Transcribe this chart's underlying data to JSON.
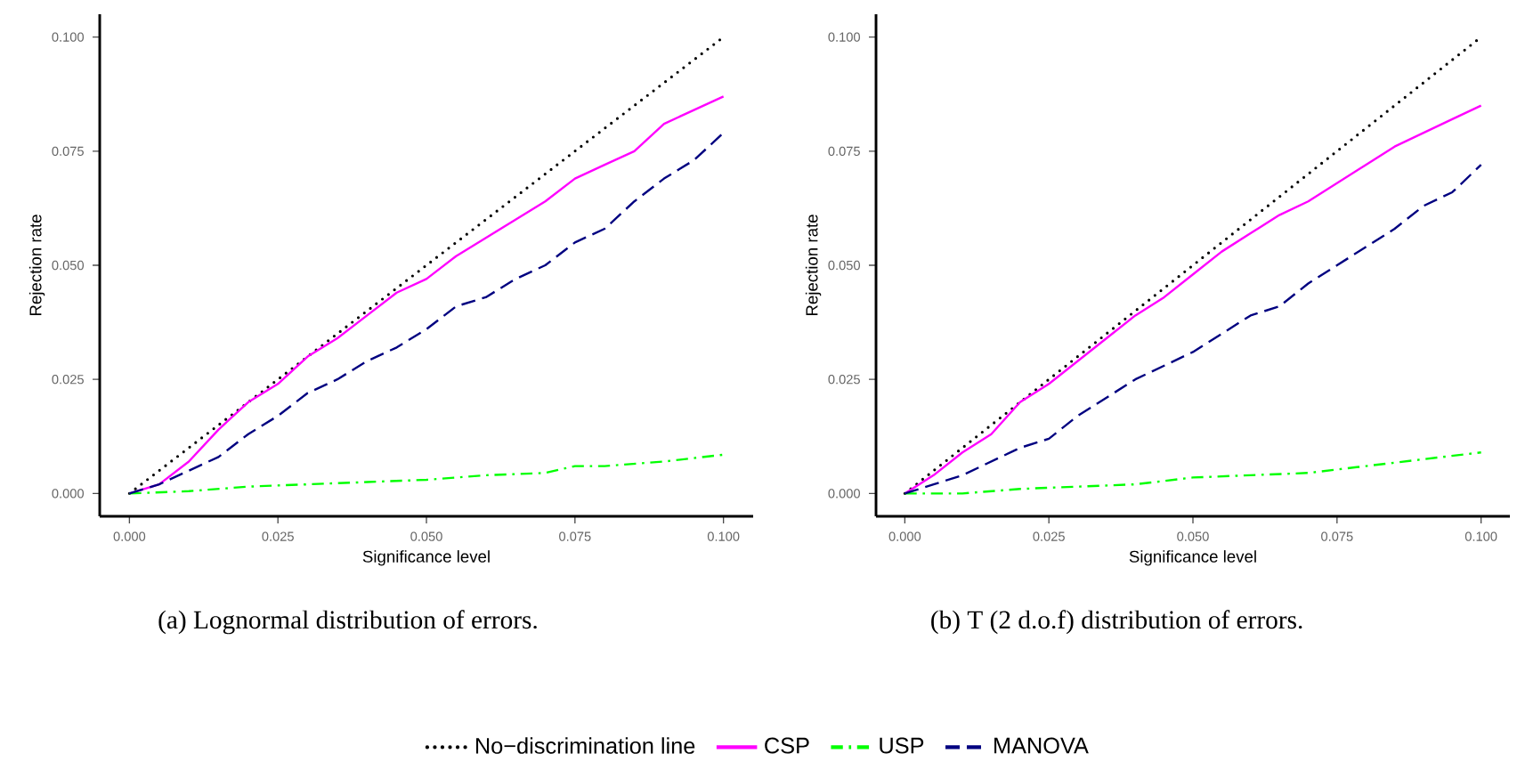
{
  "chart_data": [
    {
      "type": "line",
      "xlabel": "Significance level",
      "ylabel": "Rejection rate",
      "annotations": [
        "(a) Lognormal distribution of errors."
      ],
      "xlim": [
        -0.005,
        0.105
      ],
      "ylim": [
        -0.005,
        0.105
      ],
      "xticks": [
        {
          "value": 0,
          "label": "0.000"
        },
        {
          "value": 0.025,
          "label": "0.025"
        },
        {
          "value": 0.05,
          "label": "0.050"
        },
        {
          "value": 0.075,
          "label": "0.075"
        },
        {
          "value": 0.1,
          "label": "0.100"
        }
      ],
      "yticks": [
        {
          "value": 0,
          "label": "0.000"
        },
        {
          "value": 0.025,
          "label": "0.025"
        },
        {
          "value": 0.05,
          "label": "0.050"
        },
        {
          "value": 0.075,
          "label": "0.075"
        },
        {
          "value": 0.1,
          "label": "0.100"
        }
      ],
      "grid": false,
      "legend": false,
      "series": [
        {
          "color": "#000000",
          "line_style": "dotted",
          "x": [
            0,
            0.1
          ],
          "values": [
            0,
            0.1
          ]
        },
        {
          "color": "#ff00ff",
          "line_style": "solid",
          "x": [
            0,
            0.005,
            0.01,
            0.015,
            0.02,
            0.025,
            0.03,
            0.035,
            0.04,
            0.045,
            0.05,
            0.055,
            0.06,
            0.065,
            0.07,
            0.075,
            0.08,
            0.085,
            0.09,
            0.095,
            0.1
          ],
          "values": [
            0,
            0.002,
            0.007,
            0.014,
            0.02,
            0.024,
            0.03,
            0.034,
            0.039,
            0.044,
            0.047,
            0.052,
            0.056,
            0.06,
            0.064,
            0.069,
            0.072,
            0.075,
            0.081,
            0.084,
            0.087
          ]
        },
        {
          "color": "#00ff00",
          "line_style": "dashdot",
          "x": [
            0,
            0.01,
            0.02,
            0.03,
            0.04,
            0.05,
            0.06,
            0.07,
            0.075,
            0.08,
            0.09,
            0.1
          ],
          "values": [
            0,
            0.0005,
            0.0015,
            0.002,
            0.0025,
            0.003,
            0.004,
            0.0045,
            0.006,
            0.006,
            0.007,
            0.0085
          ]
        },
        {
          "color": "#000080",
          "line_style": "dashed",
          "x": [
            0,
            0.005,
            0.01,
            0.015,
            0.02,
            0.025,
            0.03,
            0.035,
            0.04,
            0.045,
            0.05,
            0.055,
            0.06,
            0.065,
            0.07,
            0.075,
            0.08,
            0.085,
            0.09,
            0.095,
            0.1
          ],
          "values": [
            0,
            0.002,
            0.005,
            0.008,
            0.013,
            0.017,
            0.022,
            0.025,
            0.029,
            0.032,
            0.036,
            0.041,
            0.043,
            0.047,
            0.05,
            0.055,
            0.058,
            0.064,
            0.069,
            0.073,
            0.079
          ]
        }
      ]
    },
    {
      "type": "line",
      "xlabel": "Significance level",
      "ylabel": "Rejection rate",
      "annotations": [
        "(b) T (2 d.o.f) distribution of errors."
      ],
      "xlim": [
        -0.005,
        0.105
      ],
      "ylim": [
        -0.005,
        0.105
      ],
      "xticks": [
        {
          "value": 0,
          "label": "0.000"
        },
        {
          "value": 0.025,
          "label": "0.025"
        },
        {
          "value": 0.05,
          "label": "0.050"
        },
        {
          "value": 0.075,
          "label": "0.075"
        },
        {
          "value": 0.1,
          "label": "0.100"
        }
      ],
      "yticks": [
        {
          "value": 0,
          "label": "0.000"
        },
        {
          "value": 0.025,
          "label": "0.025"
        },
        {
          "value": 0.05,
          "label": "0.050"
        },
        {
          "value": 0.075,
          "label": "0.075"
        },
        {
          "value": 0.1,
          "label": "0.100"
        }
      ],
      "grid": false,
      "legend": "bottom",
      "series": [
        {
          "name": "No−discrimination line",
          "color": "#000000",
          "line_style": "dotted",
          "x": [
            0,
            0.1
          ],
          "values": [
            0,
            0.1
          ]
        },
        {
          "name": "CSP",
          "color": "#ff00ff",
          "line_style": "solid",
          "x": [
            0,
            0.005,
            0.01,
            0.015,
            0.02,
            0.025,
            0.03,
            0.035,
            0.04,
            0.045,
            0.05,
            0.055,
            0.06,
            0.065,
            0.07,
            0.075,
            0.08,
            0.085,
            0.09,
            0.095,
            0.1
          ],
          "values": [
            0,
            0.004,
            0.009,
            0.013,
            0.02,
            0.024,
            0.029,
            0.034,
            0.039,
            0.043,
            0.048,
            0.053,
            0.057,
            0.061,
            0.064,
            0.068,
            0.072,
            0.076,
            0.079,
            0.082,
            0.085
          ]
        },
        {
          "name": "USP",
          "color": "#00ff00",
          "line_style": "dashdot",
          "x": [
            0,
            0.01,
            0.02,
            0.03,
            0.04,
            0.05,
            0.06,
            0.07,
            0.08,
            0.09,
            0.1
          ],
          "values": [
            0,
            0,
            0.001,
            0.0015,
            0.002,
            0.0035,
            0.004,
            0.0045,
            0.006,
            0.0075,
            0.009
          ]
        },
        {
          "name": "MANOVA",
          "color": "#000080",
          "line_style": "dashed",
          "x": [
            0,
            0.005,
            0.01,
            0.015,
            0.02,
            0.025,
            0.03,
            0.035,
            0.04,
            0.045,
            0.05,
            0.055,
            0.06,
            0.065,
            0.07,
            0.075,
            0.08,
            0.085,
            0.09,
            0.095,
            0.1
          ],
          "values": [
            0,
            0.002,
            0.004,
            0.007,
            0.01,
            0.012,
            0.017,
            0.021,
            0.025,
            0.028,
            0.031,
            0.035,
            0.039,
            0.041,
            0.046,
            0.05,
            0.054,
            0.058,
            0.063,
            0.066,
            0.072
          ]
        }
      ]
    }
  ]
}
